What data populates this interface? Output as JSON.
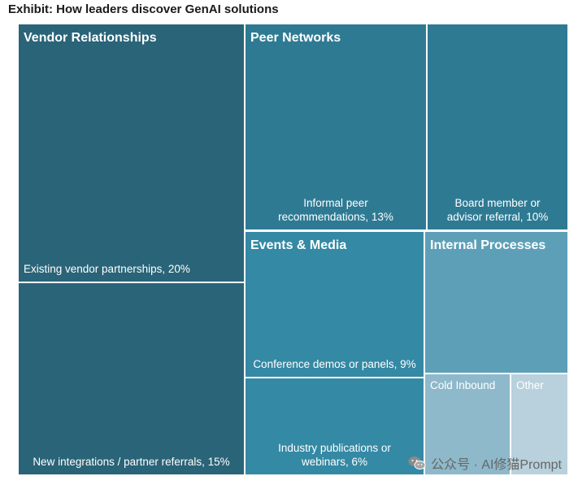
{
  "title": "Exhibit: How leaders discover GenAI solutions",
  "watermark": "公众号 · AI修猫Prompt",
  "chart_data": {
    "type": "treemap",
    "title": "Exhibit: How leaders discover GenAI solutions",
    "groups": [
      {
        "name": "Vendor Relationships",
        "color": "#2a6478",
        "items": [
          {
            "label": "Existing vendor partnerships, 20%",
            "value": 20
          },
          {
            "label": "New integrations / partner referrals, 15%",
            "value": 15
          }
        ]
      },
      {
        "name": "Peer Networks",
        "color": "#2e7a93",
        "items": [
          {
            "label": "Informal peer recommendations, 13%",
            "value": 13
          },
          {
            "label": "Board member or advisor referral, 10%",
            "value": 10
          }
        ]
      },
      {
        "name": "Events & Media",
        "color": "#3489a4",
        "items": [
          {
            "label": "Conference demos or panels, 9%",
            "value": 9
          },
          {
            "label": "Industry publications or webinars, 6%",
            "value": 6
          }
        ]
      },
      {
        "name": "Internal Processes",
        "color": "#5e9fb8",
        "items": [
          {
            "label": "",
            "value": 9
          },
          {
            "label": "Cold Inbound",
            "value": 5
          },
          {
            "label": "Other",
            "value": 3
          }
        ]
      }
    ]
  }
}
